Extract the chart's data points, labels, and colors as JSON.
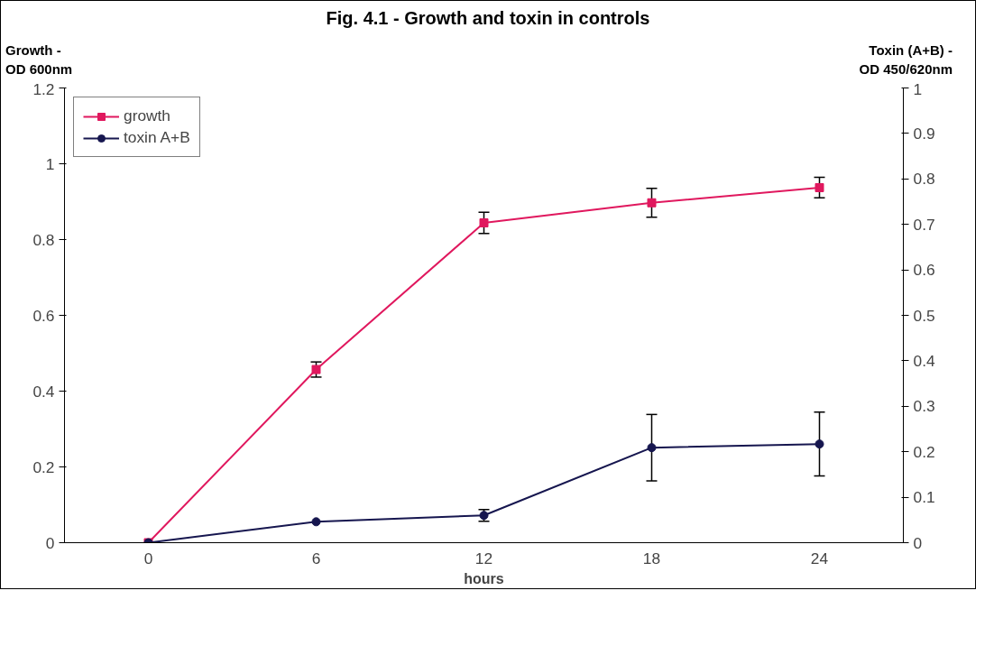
{
  "chart_data": {
    "type": "line",
    "title": "Fig. 4.1 - Growth and toxin in controls",
    "xlabel": "hours",
    "ylabel": "Growth -\nOD 600nm",
    "y2label": "Toxin (A+B) -\nOD 450/620nm",
    "categories": [
      "0",
      "6",
      "12",
      "18",
      "24"
    ],
    "series": [
      {
        "name": "growth",
        "color": "#e0185e",
        "marker": "square",
        "values": [
          0,
          0.457,
          0.844,
          0.897,
          0.937
        ],
        "errors": [
          null,
          0.02,
          0.028,
          0.038,
          0.027
        ]
      },
      {
        "name": "toxin A+B",
        "color": "#16164f",
        "marker": "circle",
        "axis": "y2",
        "values": [
          0,
          0.046,
          0.06,
          0.209,
          0.217
        ],
        "errors": [
          null,
          null,
          0.013,
          0.073,
          0.07
        ]
      }
    ],
    "ylim": [
      0,
      1.2
    ],
    "yticks": [
      0,
      0.2,
      0.4,
      0.6,
      0.8,
      1,
      1.2
    ],
    "y2lim": [
      0,
      1
    ],
    "y2ticks": [
      0,
      0.1,
      0.2,
      0.3,
      0.4,
      0.5,
      0.6,
      0.7,
      0.8,
      0.9,
      1
    ],
    "grid": false,
    "legend": "top left",
    "line_style": "solid"
  }
}
